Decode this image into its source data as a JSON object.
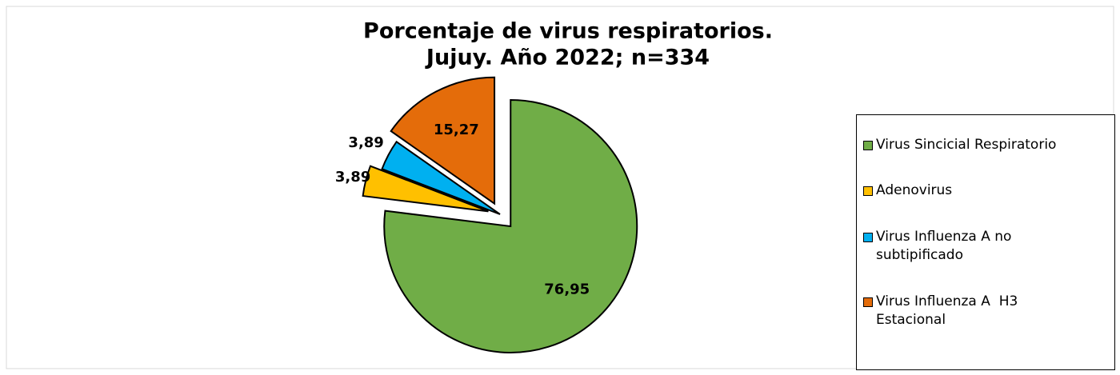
{
  "chart_data": {
    "type": "pie",
    "title": "Porcentaje de virus respiratorios.",
    "subtitle": "Jujuy. Año 2022; n=334",
    "categories": [
      "Virus Sincicial Respiratorio",
      "Adenovirus",
      "Virus Influenza A no subtipificado",
      "Virus Influenza A  H3 Estacional"
    ],
    "values": [
      76.95,
      3.89,
      3.89,
      15.27
    ],
    "value_labels": [
      "76,95",
      "3,89",
      "3,89",
      "15,27"
    ],
    "colors": [
      "#70ad47",
      "#ffc000",
      "#00b0f0",
      "#e46c0a"
    ],
    "legend": "right"
  }
}
